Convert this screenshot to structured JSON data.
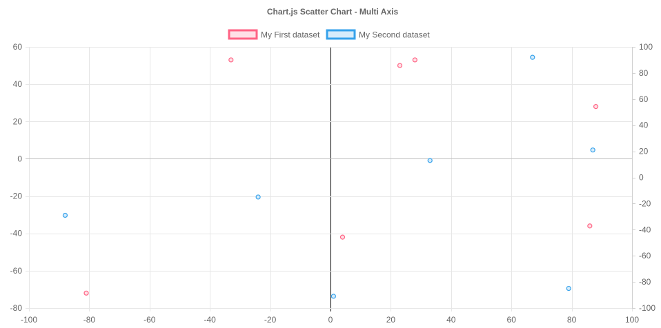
{
  "colors": {
    "series1_border": "#ff6384",
    "series1_fill": "#ffe0e6",
    "series2_border": "#36a2eb",
    "series2_fill": "#d7ecfb",
    "grid": "#e6e6e6",
    "zero_line": "#bdbdbd",
    "zero_line_x": "#000000",
    "tick_text": "#666666",
    "title_text": "#666666"
  },
  "chart_data": {
    "type": "scatter",
    "title": "Chart.js Scatter Chart - Multi Axis",
    "legend_placement": "top",
    "grid": true,
    "x_axis": {
      "min": -100,
      "max": 100,
      "ticks": [
        -100,
        -80,
        -60,
        -40,
        -20,
        0,
        20,
        40,
        60,
        80,
        100
      ]
    },
    "y_left": {
      "min": -80,
      "max": 60,
      "ticks": [
        60,
        40,
        20,
        0,
        -20,
        -40,
        -60,
        -80
      ]
    },
    "y_right": {
      "min": -100,
      "max": 100,
      "ticks": [
        100,
        80,
        60,
        40,
        20,
        0,
        -20,
        -40,
        -60,
        -80,
        -100
      ]
    },
    "series": [
      {
        "name": "My First dataset",
        "axis": "left",
        "points": [
          {
            "x": -33,
            "y": 53
          },
          {
            "x": 23,
            "y": 50
          },
          {
            "x": 28,
            "y": 53
          },
          {
            "x": 88,
            "y": 28
          },
          {
            "x": 86,
            "y": -36
          },
          {
            "x": 4,
            "y": -42
          },
          {
            "x": -81,
            "y": -72
          }
        ]
      },
      {
        "name": "My Second dataset",
        "axis": "right",
        "points": [
          {
            "x": 67,
            "y": 92
          },
          {
            "x": 87,
            "y": 21
          },
          {
            "x": 33,
            "y": 13
          },
          {
            "x": -24,
            "y": -15
          },
          {
            "x": -88,
            "y": -29
          },
          {
            "x": 79,
            "y": -85
          },
          {
            "x": 1,
            "y": -91
          }
        ]
      }
    ]
  }
}
